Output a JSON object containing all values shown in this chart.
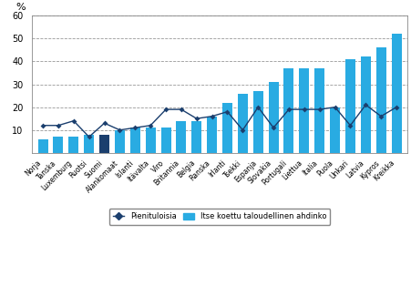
{
  "categories": [
    "Norja",
    "Tanska",
    "Luxemburg",
    "Ruotsi",
    "Suomi",
    "Alankomaat",
    "Islanti",
    "Itävalta",
    "Viro",
    "Britannia",
    "Belgia",
    "Ranska",
    "Irlanti",
    "Tsekki",
    "Espanja",
    "Slovakia",
    "Portugali",
    "Liettua",
    "Italia",
    "Puola",
    "Unkari",
    "Latvia",
    "Kypros",
    "Kreikka"
  ],
  "bar_values": [
    6,
    7,
    7,
    8,
    8,
    10,
    11,
    11,
    11,
    14,
    14,
    16,
    22,
    26,
    27,
    31,
    37,
    37,
    37,
    20,
    41,
    42,
    46,
    52
  ],
  "line_values": [
    12,
    12,
    14,
    7,
    13,
    10,
    11,
    12,
    19,
    19,
    15,
    16,
    18,
    10,
    20,
    11,
    19,
    19,
    19,
    20,
    12,
    21,
    16,
    20
  ],
  "bar_color_default": "#29ABE2",
  "bar_color_special": "#1B3F6E",
  "special_index": 4,
  "line_color": "#1B3F6E",
  "line_marker": "D",
  "line_marker_size": 3,
  "ylabel": "%",
  "ylim": [
    0,
    60
  ],
  "yticks": [
    0,
    10,
    20,
    30,
    40,
    50,
    60
  ],
  "grid_color": "#999999",
  "legend_bar_label": "Itse koettu taloudellinen ahdinko",
  "legend_line_label": "Pienituloisia",
  "background_color": "#FFFFFF"
}
